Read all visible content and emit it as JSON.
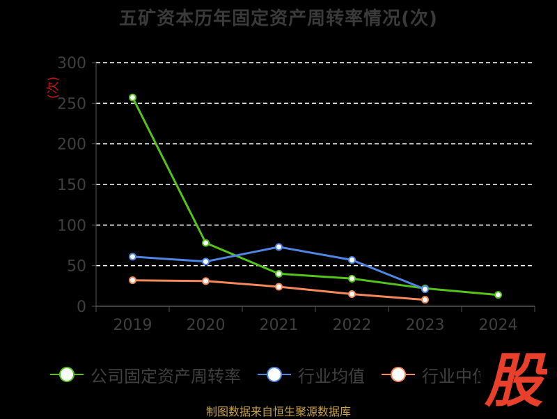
{
  "chart_data": {
    "type": "line",
    "title": "五矿资本历年固定资产周转率情况(次)",
    "ylabel": "(次)",
    "categories": [
      "2019",
      "2020",
      "2021",
      "2022",
      "2023",
      "2024"
    ],
    "yticks": [
      "0",
      "50",
      "100",
      "150",
      "200",
      "250",
      "300"
    ],
    "ylim": [
      0,
      300
    ],
    "grid": true,
    "legend_position": "bottom",
    "series": [
      {
        "name": "公司固定资产周转率",
        "color": "#52c41a",
        "values": [
          257,
          78,
          40,
          34,
          22,
          14
        ]
      },
      {
        "name": "行业均值",
        "color": "#4f86e3",
        "values": [
          61,
          55,
          73,
          57,
          21,
          null
        ]
      },
      {
        "name": "行业中位数",
        "color": "#f5895a",
        "values": [
          32,
          31,
          24,
          15,
          8,
          null
        ]
      }
    ]
  },
  "footer": {
    "source": "制图数据来自恒生聚源数据库"
  },
  "brand": {
    "logo_text": "股",
    "logo_color": "#e8402a"
  }
}
